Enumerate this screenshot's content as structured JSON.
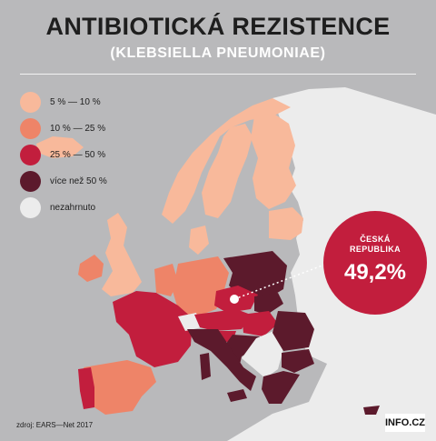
{
  "header": {
    "title": "ANTIBIOTICKÁ REZISTENCE",
    "subtitle": "(KLEBSIELLA PNEUMONIAE)"
  },
  "legend": [
    {
      "label": "5 % — 10 %",
      "color": "#f8b99b"
    },
    {
      "label": "10 % — 25 %",
      "color": "#ee8468"
    },
    {
      "label": "25 % — 50 %",
      "color": "#c21e3d"
    },
    {
      "label": "více než 50 %",
      "color": "#5c1a2c"
    },
    {
      "label": "nezahrnuto",
      "color": "#ececec"
    }
  ],
  "callout": {
    "label_line1": "ČESKÁ",
    "label_line2": "REPUBLIKA",
    "value": "49,2%"
  },
  "footer": {
    "source": "zdroj:  EARS—Net 2017",
    "logo": "INFO.CZ"
  }
}
